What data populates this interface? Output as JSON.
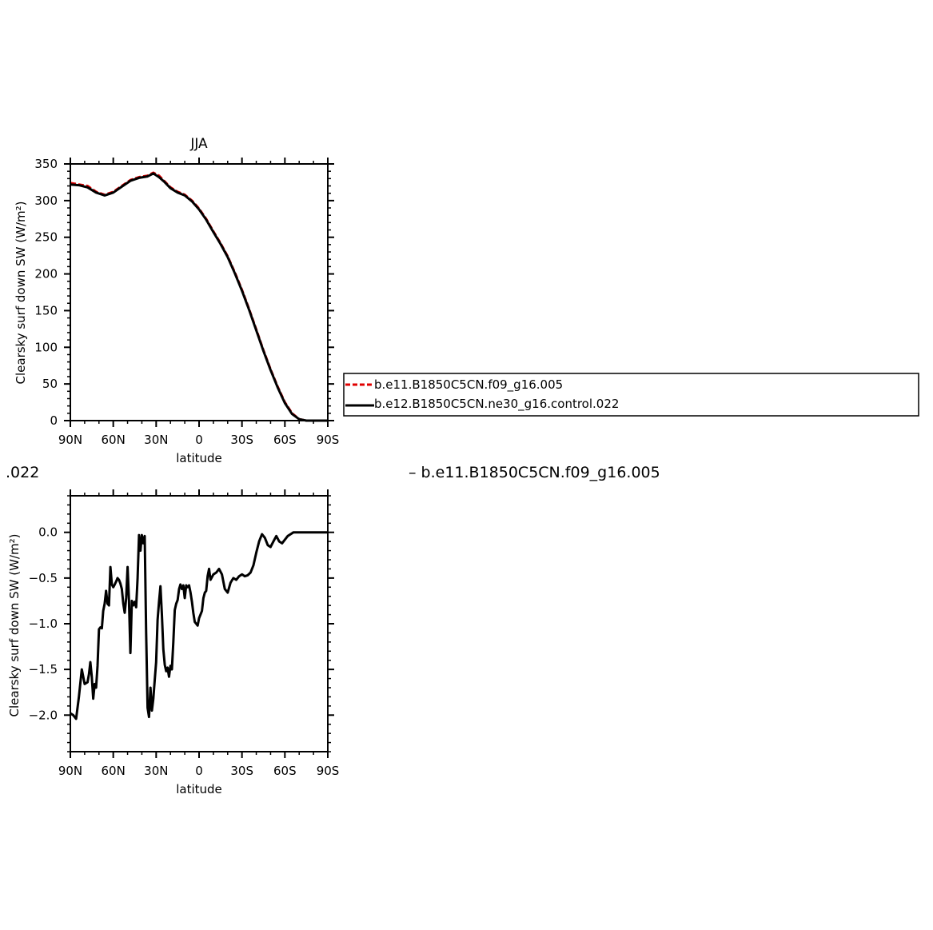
{
  "fragments": {
    "left_label": ".022",
    "right_label": "– b.e11.B1850C5CN.f09_g16.005"
  },
  "legend": {
    "entries": [
      {
        "label": "b.e11.B1850C5CN.f09_g16.005",
        "color": "#e00000",
        "dashed": true
      },
      {
        "label": "b.e12.B1850C5CN.ne30_g16.control.022",
        "color": "#000000",
        "dashed": false
      }
    ]
  },
  "chart_data": [
    {
      "type": "line",
      "title": "JJA",
      "xlabel": "latitude",
      "ylabel": "Clearsky surf down SW (W/m²)",
      "xlim": [
        90,
        -90
      ],
      "ylim": [
        0,
        350
      ],
      "xticks": [
        90,
        60,
        30,
        0,
        -30,
        -60,
        -90
      ],
      "xticklabels": [
        "90N",
        "60N",
        "30N",
        "0",
        "30S",
        "60S",
        "90S"
      ],
      "yticks": [
        0,
        50,
        100,
        150,
        200,
        250,
        300,
        350
      ],
      "yticklabels": [
        "0",
        "50",
        "100",
        "150",
        "200",
        "250",
        "300",
        "350"
      ],
      "series": [
        {
          "name": "b.e11.B1850C5CN.f09_g16.005",
          "color": "#e00000",
          "dashed": true,
          "x": [
            90,
            84,
            78,
            72,
            66,
            60,
            54,
            48,
            42,
            36,
            32,
            28,
            24,
            20,
            15,
            10,
            5,
            0,
            -5,
            -10,
            -15,
            -20,
            -25,
            -30,
            -35,
            -40,
            -45,
            -50,
            -55,
            -60,
            -65,
            -70,
            -75,
            -80,
            -85,
            -90
          ],
          "y": [
            324,
            322,
            320,
            312,
            308,
            312,
            320,
            328,
            332,
            334,
            338,
            334,
            326,
            318,
            312,
            308,
            300,
            289,
            275,
            258,
            242,
            224,
            202,
            178,
            152,
            124,
            96,
            70,
            46,
            25,
            10,
            2,
            0,
            0,
            0,
            0
          ]
        },
        {
          "name": "b.e12.B1850C5CN.ne30_g16.control.022",
          "color": "#000000",
          "dashed": false,
          "x": [
            90,
            84,
            78,
            72,
            66,
            60,
            54,
            48,
            42,
            36,
            32,
            28,
            24,
            20,
            15,
            10,
            5,
            0,
            -5,
            -10,
            -15,
            -20,
            -25,
            -30,
            -35,
            -40,
            -45,
            -50,
            -55,
            -60,
            -65,
            -70,
            -75,
            -80,
            -85,
            -90
          ],
          "y": [
            322,
            321,
            318,
            311,
            307,
            311,
            319,
            327,
            331,
            333,
            337,
            332,
            325,
            317,
            311,
            307,
            299,
            288,
            274,
            257,
            241,
            223,
            201,
            177,
            151,
            123,
            95,
            69,
            45,
            24,
            9,
            2,
            0,
            0,
            0,
            0
          ]
        }
      ]
    },
    {
      "type": "line",
      "title": "",
      "xlabel": "latitude",
      "ylabel": "Clearsky surf down SW (W/m²)",
      "xlim": [
        90,
        -90
      ],
      "ylim": [
        -2.4,
        0.4
      ],
      "xticks": [
        90,
        60,
        30,
        0,
        -30,
        -60,
        -90
      ],
      "xticklabels": [
        "90N",
        "60N",
        "30N",
        "0",
        "30S",
        "60S",
        "90S"
      ],
      "yticks": [
        0.0,
        -0.5,
        -1.0,
        -1.5,
        -2.0
      ],
      "yticklabels": [
        "0.0",
        "−0.5",
        "−1.0",
        "−1.5",
        "−2.0"
      ],
      "series": [
        {
          "color": "#000000",
          "dashed": false,
          "x": [
            90,
            88,
            86,
            84,
            82,
            80,
            78,
            77,
            76,
            75,
            74,
            73,
            72,
            71,
            70,
            69,
            68,
            67,
            66,
            65,
            64,
            63,
            62,
            61,
            60,
            59,
            58,
            57,
            56,
            55,
            54,
            53,
            52,
            51,
            50,
            49,
            48,
            47,
            46,
            45,
            44,
            43,
            42,
            41,
            40,
            39,
            38,
            37,
            36,
            35,
            34,
            33,
            32,
            31,
            30,
            29,
            28,
            27,
            26,
            25,
            24,
            23,
            22,
            21,
            20,
            19,
            18,
            17,
            16,
            15,
            14,
            13,
            12,
            11,
            10,
            9,
            8,
            7,
            6,
            5,
            4,
            3,
            2,
            1,
            0,
            -1,
            -2,
            -3,
            -4,
            -5,
            -6,
            -7,
            -8,
            -10,
            -12,
            -14,
            -16,
            -18,
            -20,
            -22,
            -24,
            -26,
            -28,
            -30,
            -32,
            -34,
            -36,
            -38,
            -40,
            -42,
            -44,
            -46,
            -48,
            -50,
            -52,
            -54,
            -56,
            -58,
            -60,
            -62,
            -64,
            -66,
            -68,
            -70,
            -72,
            -74,
            -76,
            -78,
            -80,
            -82,
            -84,
            -86,
            -88,
            -90
          ],
          "y": [
            -1.98,
            -2.0,
            -2.04,
            -1.8,
            -1.5,
            -1.66,
            -1.64,
            -1.55,
            -1.42,
            -1.58,
            -1.82,
            -1.66,
            -1.7,
            -1.46,
            -1.06,
            -1.04,
            -1.05,
            -0.86,
            -0.78,
            -0.64,
            -0.78,
            -0.8,
            -0.38,
            -0.57,
            -0.6,
            -0.57,
            -0.54,
            -0.5,
            -0.52,
            -0.56,
            -0.62,
            -0.78,
            -0.88,
            -0.72,
            -0.38,
            -0.74,
            -1.32,
            -0.75,
            -0.8,
            -0.76,
            -0.82,
            -0.5,
            -0.03,
            -0.2,
            -0.03,
            -0.12,
            -0.04,
            -1.1,
            -1.92,
            -2.02,
            -1.7,
            -1.95,
            -1.82,
            -1.62,
            -1.42,
            -0.96,
            -0.76,
            -0.59,
            -0.9,
            -1.28,
            -1.45,
            -1.52,
            -1.48,
            -1.58,
            -1.46,
            -1.5,
            -1.2,
            -0.85,
            -0.78,
            -0.74,
            -0.62,
            -0.57,
            -0.62,
            -0.58,
            -0.72,
            -0.58,
            -0.6,
            -0.58,
            -0.66,
            -0.76,
            -0.88,
            -0.98,
            -1.0,
            -1.02,
            -0.94,
            -0.9,
            -0.86,
            -0.72,
            -0.66,
            -0.64,
            -0.48,
            -0.4,
            -0.52,
            -0.46,
            -0.44,
            -0.4,
            -0.46,
            -0.62,
            -0.66,
            -0.55,
            -0.5,
            -0.52,
            -0.48,
            -0.46,
            -0.48,
            -0.47,
            -0.44,
            -0.36,
            -0.22,
            -0.1,
            -0.02,
            -0.06,
            -0.14,
            -0.16,
            -0.1,
            -0.04,
            -0.1,
            -0.12,
            -0.08,
            -0.04,
            -0.02,
            0.0,
            0.0,
            0.0,
            0.0,
            0.0,
            0.0,
            0.0,
            0.0,
            0.0,
            0.0,
            0.0,
            0.0,
            0.0
          ]
        }
      ]
    }
  ]
}
